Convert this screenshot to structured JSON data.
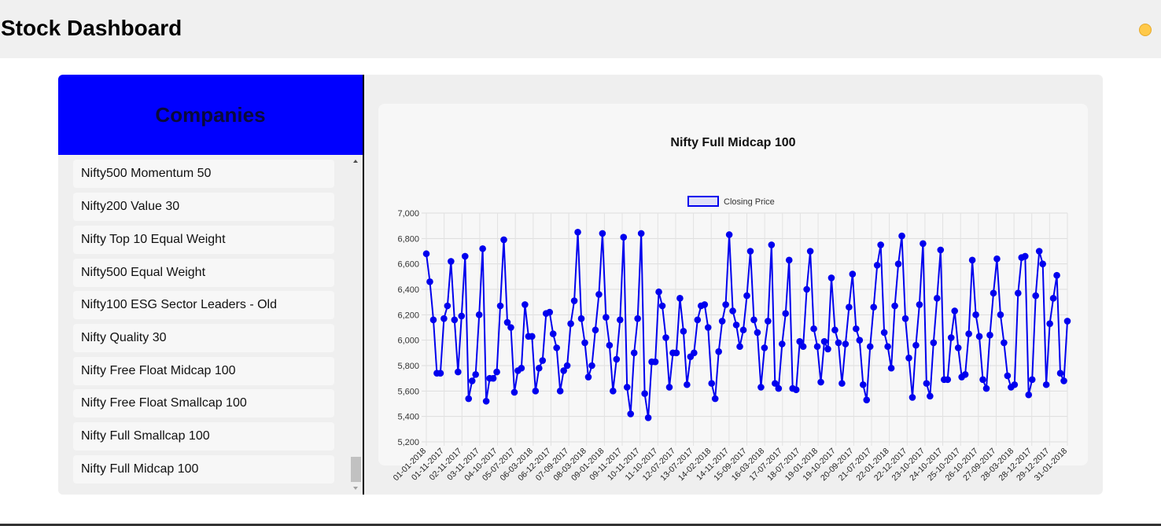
{
  "header": {
    "title": "Stock Dashboard",
    "theme_icon": "sun-icon"
  },
  "sidebar": {
    "title": "Companies",
    "items": [
      "Nifty500 Momentum 50",
      "Nifty200 Value 30",
      "Nifty Top 10 Equal Weight",
      "Nifty500 Equal Weight",
      "Nifty100 ESG Sector Leaders - Old",
      "Nifty Quality 30",
      "Nifty Free Float Midcap 100",
      "Nifty Free Float Smallcap 100",
      "Nifty Full Smallcap 100",
      "Nifty Full Midcap 100"
    ]
  },
  "colors": {
    "sidebar_header": "#0000ff",
    "line": "#0000ee",
    "legend_fill": "#e0e0f8"
  },
  "chart_data": {
    "type": "line",
    "title": "Nifty Full Midcap 100",
    "legend": [
      "Closing Price"
    ],
    "legend_position": "top",
    "grid": true,
    "ylim": [
      5200,
      7000
    ],
    "y_ticks": [
      "5,200",
      "5,400",
      "5,600",
      "5,800",
      "6,000",
      "6,200",
      "6,400",
      "6,600",
      "6,800",
      "7,000"
    ],
    "x_tick_labels": [
      "01-01-2018",
      "01-11-2017",
      "02-11-2017",
      "03-11-2017",
      "04-10-2017",
      "05-07-2017",
      "06-03-2018",
      "06-12-2017",
      "07-09-2017",
      "08-03-2018",
      "09-01-2018",
      "09-11-2017",
      "10-11-2017",
      "11-10-2017",
      "12-07-2017",
      "13-07-2017",
      "14-02-2018",
      "14-11-2017",
      "15-09-2017",
      "16-03-2018",
      "17-07-2017",
      "18-07-2017",
      "19-01-2018",
      "19-10-2017",
      "20-09-2017",
      "21-07-2017",
      "22-01-2018",
      "22-12-2017",
      "23-10-2017",
      "24-10-2017",
      "25-10-2017",
      "26-10-2017",
      "27-09-2017",
      "28-03-2018",
      "28-12-2017",
      "29-12-2017",
      "31-01-2018"
    ],
    "series": [
      {
        "name": "Closing Price",
        "values": [
          6680,
          6460,
          6160,
          5740,
          5740,
          6170,
          6270,
          6620,
          6160,
          5750,
          6190,
          6660,
          5540,
          5680,
          5730,
          6200,
          6720,
          5520,
          5700,
          5700,
          5750,
          6270,
          6790,
          6140,
          6100,
          5590,
          5760,
          5780,
          6280,
          6030,
          6030,
          5600,
          5780,
          5840,
          6210,
          6220,
          6050,
          5940,
          5600,
          5760,
          5800,
          6130,
          6310,
          6850,
          6170,
          5980,
          5710,
          5800,
          6080,
          6360,
          6840,
          6180,
          5960,
          5600,
          5850,
          6160,
          6810,
          5630,
          5420,
          5900,
          6170,
          6840,
          5580,
          5390,
          5830,
          5830,
          6380,
          6270,
          6020,
          5630,
          5900,
          5900,
          6330,
          6070,
          5650,
          5870,
          5900,
          6160,
          6270,
          6280,
          6100,
          5660,
          5540,
          5910,
          6150,
          6280,
          6830,
          6230,
          6120,
          5950,
          6080,
          6350,
          6700,
          6160,
          6060,
          5630,
          5940,
          6150,
          6750,
          5660,
          5620,
          5970,
          6210,
          6630,
          5620,
          5610,
          5990,
          5950,
          6400,
          6700,
          6090,
          5950,
          5670,
          5990,
          5930,
          6490,
          6080,
          5980,
          5660,
          5970,
          6260,
          6520,
          6090,
          6000,
          5650,
          5530,
          5950,
          6260,
          6590,
          6750,
          6060,
          5950,
          5780,
          6270,
          6600,
          6820,
          6170,
          5860,
          5550,
          5960,
          6280,
          6760,
          5660,
          5560,
          5980,
          6330,
          6710,
          5690,
          5690,
          6020,
          6230,
          5940,
          5710,
          5730,
          6050,
          6630,
          6200,
          6030,
          5690,
          5620,
          6040,
          6370,
          6640,
          6200,
          5980,
          5720,
          5630,
          5650,
          6370,
          6650,
          6660,
          5570,
          5690,
          6350,
          6700,
          6600,
          5650,
          6130,
          6330,
          6510,
          5740,
          5680,
          6150
        ]
      }
    ]
  }
}
